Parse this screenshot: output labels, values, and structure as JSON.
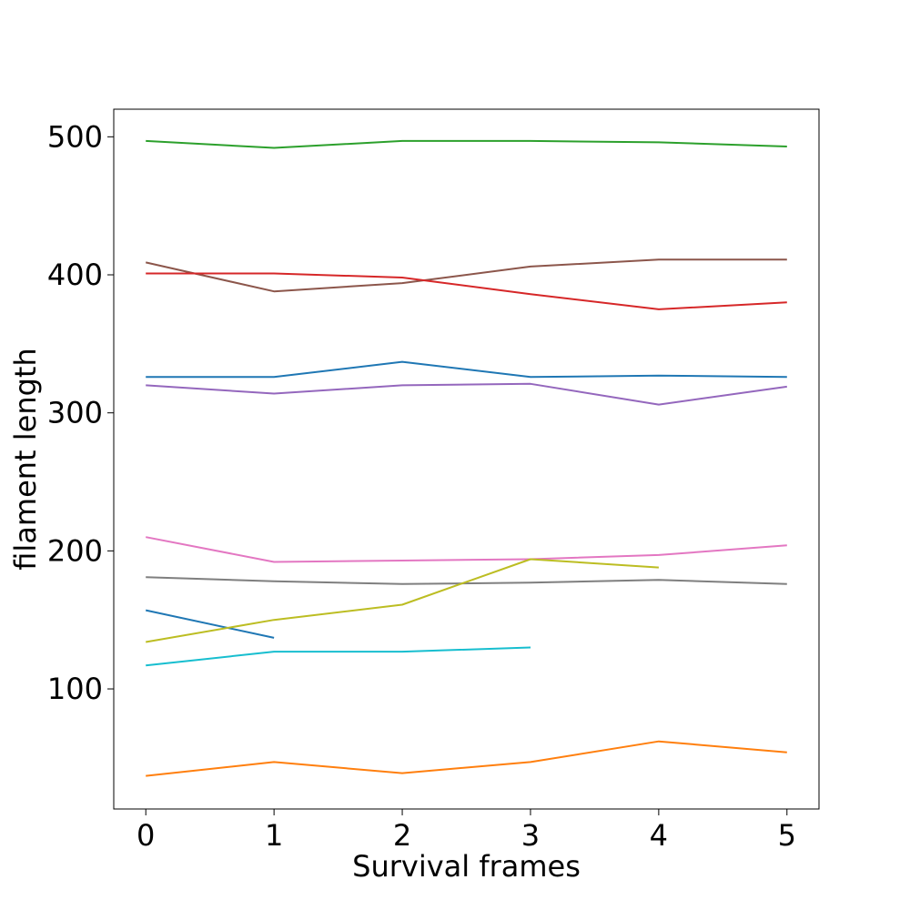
{
  "chart_data": {
    "type": "line",
    "title": "",
    "xlabel": "Survival frames",
    "ylabel": "filament length",
    "xlim": [
      -0.25,
      5.25
    ],
    "ylim": [
      13,
      520
    ],
    "x_ticks": [
      0,
      1,
      2,
      3,
      4,
      5
    ],
    "y_ticks": [
      100,
      200,
      300,
      400,
      500
    ],
    "grid": false,
    "legend": "none",
    "series": [
      {
        "color": "#2ca02c",
        "x": [
          0,
          1,
          2,
          3,
          4,
          5
        ],
        "y": [
          497,
          492,
          497,
          497,
          496,
          493
        ]
      },
      {
        "color": "#8c564b",
        "x": [
          0,
          1,
          2,
          3,
          4,
          5
        ],
        "y": [
          409,
          388,
          394,
          406,
          411,
          411
        ]
      },
      {
        "color": "#d62728",
        "x": [
          0,
          1,
          2,
          3,
          4,
          5
        ],
        "y": [
          401,
          401,
          398,
          386,
          375,
          380
        ]
      },
      {
        "color": "#1f77b4",
        "x": [
          0,
          1,
          2,
          3,
          4,
          5
        ],
        "y": [
          326,
          326,
          337,
          326,
          327,
          326
        ]
      },
      {
        "color": "#9467bd",
        "x": [
          0,
          1,
          2,
          3,
          4,
          5
        ],
        "y": [
          320,
          314,
          320,
          321,
          306,
          319
        ]
      },
      {
        "color": "#e377c2",
        "x": [
          0,
          1,
          2,
          3,
          4,
          5
        ],
        "y": [
          210,
          192,
          193,
          194,
          197,
          204
        ]
      },
      {
        "color": "#7f7f7f",
        "x": [
          0,
          1,
          2,
          3,
          4,
          5
        ],
        "y": [
          181,
          178,
          176,
          177,
          179,
          176
        ]
      },
      {
        "color": "#1f77b4",
        "x": [
          0,
          1
        ],
        "y": [
          157,
          137
        ]
      },
      {
        "color": "#bcbd22",
        "x": [
          0,
          1,
          2,
          3,
          4
        ],
        "y": [
          134,
          150,
          161,
          194,
          188
        ]
      },
      {
        "color": "#17becf",
        "x": [
          0,
          1,
          2,
          3
        ],
        "y": [
          117,
          127,
          127,
          130
        ]
      },
      {
        "color": "#ff7f0e",
        "x": [
          0,
          1,
          2,
          3,
          4,
          5
        ],
        "y": [
          37,
          47,
          39,
          47,
          62,
          54
        ]
      }
    ]
  }
}
